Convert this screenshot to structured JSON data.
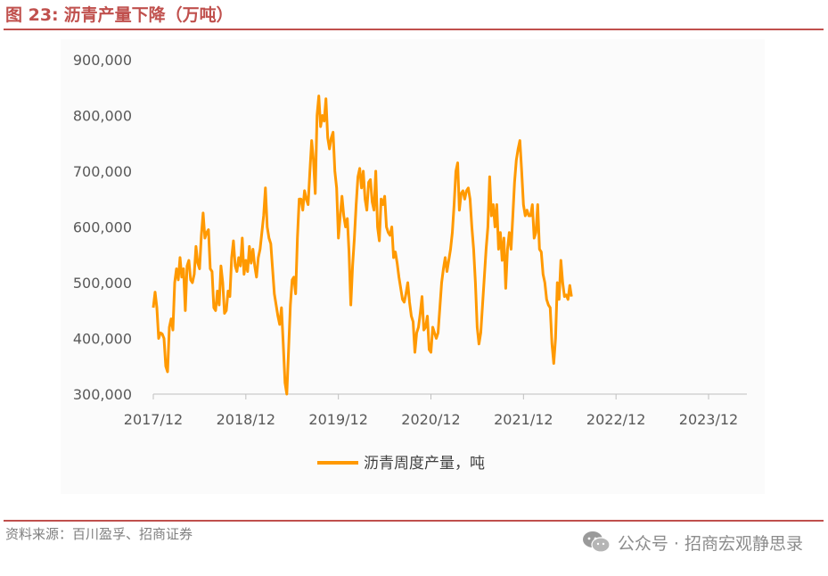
{
  "header": {
    "figure_number": "图 23:",
    "title": "沥青产量下降（万吨）"
  },
  "footer": {
    "source": "资料来源：百川盈孚、招商证券",
    "watermark": "公众号 · 招商宏观静思录",
    "watermark_icon": "wechat-icon"
  },
  "chart_data": {
    "type": "line",
    "title": "沥青产量下降（万吨）",
    "x_tick_labels": [
      "2017/12",
      "2018/12",
      "2019/12",
      "2020/12",
      "2021/12",
      "2022/12",
      "2023/12"
    ],
    "xlim": [
      "2017/12",
      "2024/06"
    ],
    "y_tick_labels": [
      "300,000",
      "400,000",
      "500,000",
      "600,000",
      "700,000",
      "800,000",
      "900,000"
    ],
    "ylim": [
      300000,
      900000
    ],
    "grid": false,
    "legend_position": "bottom",
    "series": [
      {
        "name": "沥青周度产量，吨",
        "color": "#ff9900",
        "x_start": "2017-12",
        "interval": "week",
        "values": [
          455000,
          483000,
          455000,
          400000,
          410000,
          408000,
          400000,
          350000,
          340000,
          420000,
          435000,
          415000,
          500000,
          525000,
          505000,
          545000,
          510000,
          525000,
          450000,
          530000,
          540000,
          505000,
          500000,
          515000,
          565000,
          535000,
          525000,
          585000,
          625000,
          580000,
          590000,
          595000,
          525000,
          520000,
          455000,
          450000,
          485000,
          460000,
          530000,
          500000,
          445000,
          450000,
          485000,
          475000,
          545000,
          575000,
          530000,
          520000,
          545000,
          530000,
          580000,
          515000,
          540000,
          520000,
          565000,
          535000,
          560000,
          530000,
          510000,
          545000,
          560000,
          590000,
          620000,
          670000,
          600000,
          580000,
          570000,
          525000,
          480000,
          460000,
          440000,
          425000,
          455000,
          390000,
          320000,
          300000,
          380000,
          460000,
          505000,
          510000,
          480000,
          580000,
          650000,
          650000,
          630000,
          665000,
          650000,
          640000,
          700000,
          755000,
          720000,
          660000,
          800000,
          835000,
          780000,
          800000,
          790000,
          830000,
          760000,
          740000,
          760000,
          770000,
          700000,
          670000,
          580000,
          620000,
          655000,
          620000,
          600000,
          615000,
          555000,
          460000,
          530000,
          580000,
          640000,
          690000,
          705000,
          670000,
          700000,
          650000,
          630000,
          680000,
          685000,
          645000,
          630000,
          700000,
          600000,
          575000,
          650000,
          640000,
          655000,
          600000,
          590000,
          585000,
          600000,
          545000,
          555000,
          535000,
          510000,
          490000,
          470000,
          465000,
          480000,
          500000,
          465000,
          440000,
          430000,
          375000,
          410000,
          420000,
          445000,
          475000,
          415000,
          420000,
          440000,
          380000,
          375000,
          420000,
          410000,
          400000,
          410000,
          455000,
          500000,
          525000,
          545000,
          520000,
          540000,
          560000,
          590000,
          640000,
          700000,
          715000,
          630000,
          660000,
          665000,
          650000,
          665000,
          670000,
          650000,
          600000,
          560000,
          500000,
          420000,
          390000,
          410000,
          460000,
          510000,
          560000,
          600000,
          690000,
          620000,
          640000,
          600000,
          640000,
          560000,
          590000,
          540000,
          580000,
          490000,
          560000,
          590000,
          560000,
          620000,
          680000,
          720000,
          740000,
          755000,
          700000,
          640000,
          620000,
          630000,
          620000,
          620000,
          640000,
          580000,
          590000,
          640000,
          560000,
          555000,
          515000,
          500000,
          470000,
          460000,
          455000,
          390000,
          355000,
          400000,
          500000,
          470000,
          540000,
          500000,
          475000,
          478000,
          470000,
          495000,
          475000
        ]
      }
    ]
  }
}
